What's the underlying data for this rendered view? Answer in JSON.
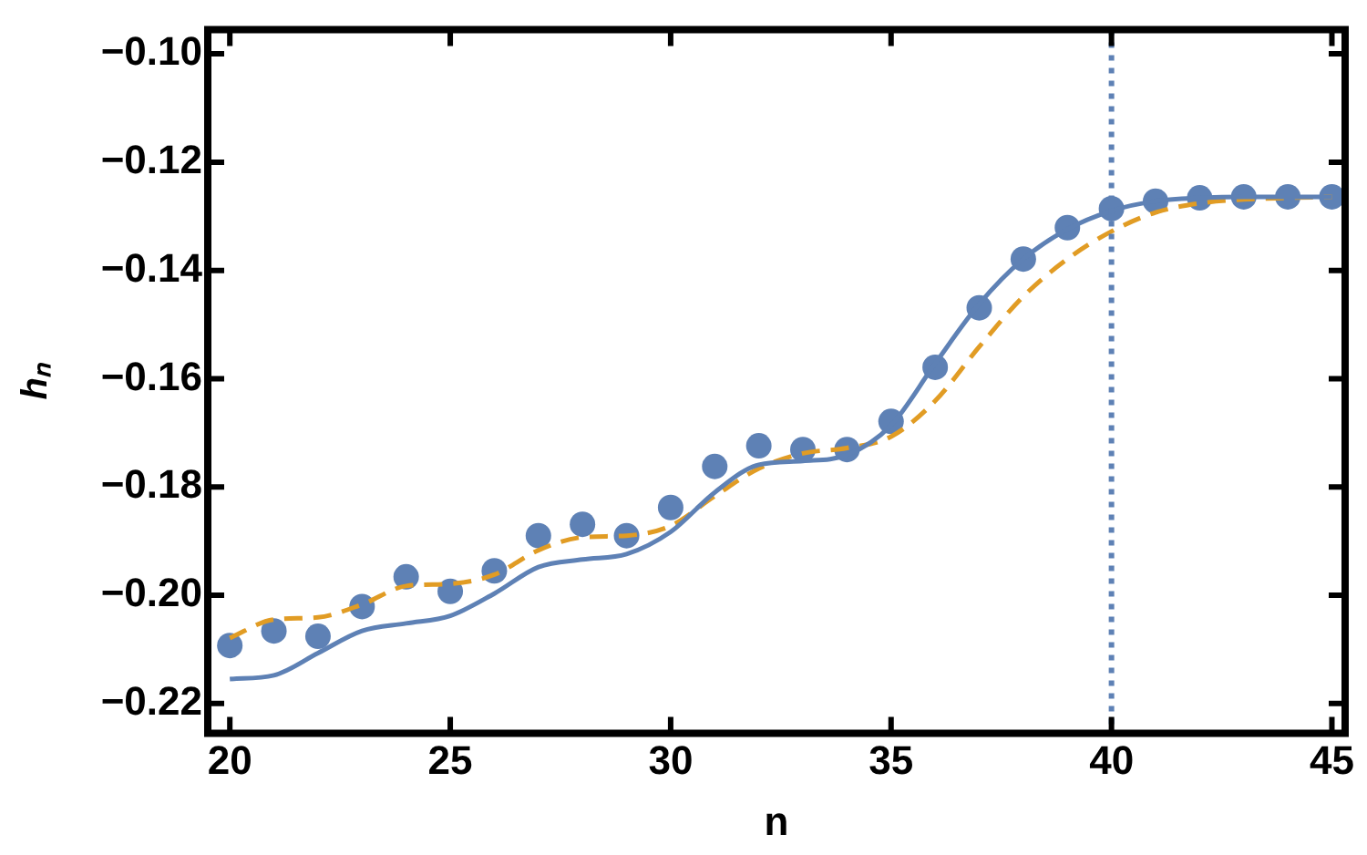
{
  "chart_data": {
    "type": "scatter",
    "xlabel": "n",
    "ylabel": "hₙ",
    "xlim": [
      19.5,
      45.3
    ],
    "ylim": [
      -0.2255,
      -0.0955
    ],
    "xticks": [
      20,
      25,
      30,
      35,
      40,
      45
    ],
    "yticks": [
      {
        "value": -0.22,
        "label": "−0.22"
      },
      {
        "value": -0.2,
        "label": "−0.20"
      },
      {
        "value": -0.18,
        "label": "−0.18"
      },
      {
        "value": -0.16,
        "label": "−0.16"
      },
      {
        "value": -0.14,
        "label": "−0.14"
      },
      {
        "value": -0.12,
        "label": "−0.12"
      },
      {
        "value": -0.1,
        "label": "−0.10"
      }
    ],
    "grid": false,
    "legend": false,
    "x": [
      20,
      21,
      22,
      23,
      24,
      25,
      26,
      27,
      28,
      29,
      30,
      31,
      32,
      33,
      34,
      35,
      36,
      37,
      38,
      39,
      40,
      41,
      42,
      43,
      44,
      45
    ],
    "series": [
      {
        "type": "line",
        "line_style": "solid",
        "marker": "none",
        "color": "#5e81b5",
        "values": [
          -0.2155,
          -0.2148,
          -0.2107,
          -0.2066,
          -0.2052,
          -0.2038,
          -0.1997,
          -0.1948,
          -0.1934,
          -0.1924,
          -0.1883,
          -0.181,
          -0.1759,
          -0.1752,
          -0.1741,
          -0.1686,
          -0.1572,
          -0.1462,
          -0.1379,
          -0.1324,
          -0.129,
          -0.1272,
          -0.1266,
          -0.1264,
          -0.1264,
          -0.1264
        ]
      },
      {
        "type": "line",
        "line_style": "dashed",
        "marker": "none",
        "color": "#e19c24",
        "values": [
          -0.2079,
          -0.2045,
          -0.2041,
          -0.2017,
          -0.1983,
          -0.1979,
          -0.1962,
          -0.1917,
          -0.1893,
          -0.189,
          -0.1872,
          -0.1817,
          -0.1766,
          -0.1738,
          -0.1728,
          -0.1707,
          -0.1641,
          -0.1541,
          -0.1448,
          -0.1379,
          -0.1328,
          -0.1293,
          -0.1276,
          -0.1269,
          -0.1266,
          -0.1264
        ]
      },
      {
        "type": "scatter",
        "marker": "circle",
        "color": "#5e81b5",
        "values": [
          -0.2093,
          -0.2066,
          -0.2076,
          -0.2021,
          -0.1966,
          -0.1993,
          -0.1955,
          -0.189,
          -0.1869,
          -0.189,
          -0.1838,
          -0.1762,
          -0.1724,
          -0.1731,
          -0.1731,
          -0.1679,
          -0.1579,
          -0.1469,
          -0.1379,
          -0.1321,
          -0.1286,
          -0.1272,
          -0.1266,
          -0.1264,
          -0.1264,
          -0.1264
        ]
      }
    ],
    "ref_lines": [
      {
        "axis": "x",
        "value": 40,
        "color": "#5e81b5",
        "line_style": "dotted"
      }
    ]
  }
}
